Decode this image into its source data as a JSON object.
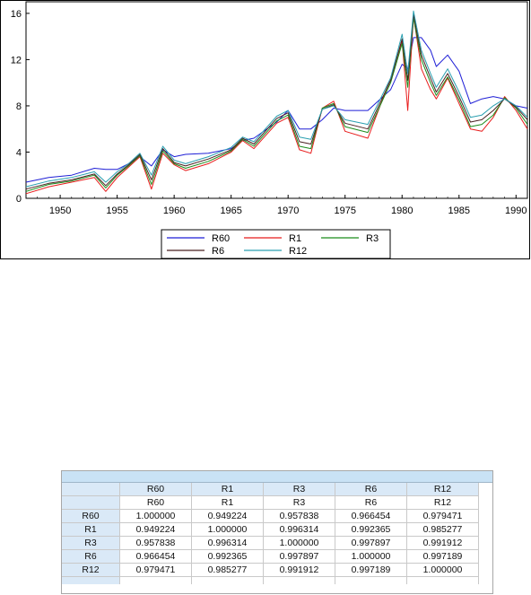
{
  "chart_data": {
    "type": "line",
    "xlabel": "",
    "ylabel": "",
    "xlim": [
      1947,
      1991
    ],
    "ylim": [
      0,
      17
    ],
    "x_ticks": [
      "1950",
      "1955",
      "1960",
      "1965",
      "1970",
      "1975",
      "1980",
      "1985",
      "1990"
    ],
    "y_ticks": [
      "0",
      "4",
      "8",
      "12",
      "16"
    ],
    "legend_position": "bottom-center",
    "x": [
      1947,
      1949,
      1951,
      1953,
      1954,
      1955,
      1956,
      1957,
      1958,
      1959,
      1960,
      1961,
      1963,
      1965,
      1966,
      1967,
      1969,
      1970,
      1971,
      1972,
      1973,
      1974,
      1975,
      1977,
      1979,
      1980,
      1980.5,
      1981,
      1981.7,
      1982.5,
      1983,
      1984,
      1985,
      1986,
      1987,
      1988,
      1989,
      1990,
      1991
    ],
    "series": [
      {
        "name": "R60",
        "color": "#1f1fd6",
        "values": [
          1.4,
          1.8,
          2.0,
          2.6,
          2.5,
          2.5,
          3.0,
          3.6,
          2.8,
          4.2,
          3.6,
          3.8,
          3.9,
          4.3,
          5.0,
          5.2,
          6.6,
          7.6,
          6.0,
          6.0,
          6.8,
          7.8,
          7.6,
          7.6,
          9.4,
          11.6,
          11.2,
          13.9,
          13.9,
          12.8,
          11.4,
          12.4,
          11.0,
          8.2,
          8.6,
          8.8,
          8.6,
          8.0,
          7.8
        ]
      },
      {
        "name": "R1",
        "color": "#e81c1c",
        "values": [
          0.4,
          1.0,
          1.4,
          1.8,
          0.6,
          1.8,
          2.7,
          3.6,
          0.8,
          3.9,
          2.9,
          2.4,
          3.0,
          4.0,
          5.0,
          4.3,
          6.5,
          7.0,
          4.2,
          3.9,
          7.8,
          8.4,
          5.8,
          5.2,
          10.4,
          13.6,
          7.6,
          15.8,
          11.2,
          9.4,
          8.6,
          10.4,
          8.2,
          6.0,
          5.8,
          7.0,
          8.8,
          7.6,
          6.0
        ]
      },
      {
        "name": "R3",
        "color": "#1a8c1a",
        "values": [
          0.6,
          1.2,
          1.5,
          2.0,
          0.9,
          2.0,
          2.8,
          3.7,
          1.2,
          4.1,
          3.0,
          2.6,
          3.2,
          4.1,
          5.1,
          4.5,
          6.7,
          7.2,
          4.5,
          4.3,
          7.8,
          8.2,
          6.2,
          5.7,
          10.0,
          13.4,
          9.6,
          15.6,
          12.0,
          10.0,
          8.9,
          10.5,
          8.5,
          6.2,
          6.4,
          7.2,
          8.7,
          7.8,
          6.4
        ]
      },
      {
        "name": "R6",
        "color": "#4a2020",
        "values": [
          0.8,
          1.3,
          1.6,
          2.1,
          1.1,
          2.1,
          2.9,
          3.8,
          1.6,
          4.3,
          3.1,
          2.8,
          3.4,
          4.2,
          5.2,
          4.7,
          6.9,
          7.4,
          4.9,
          4.7,
          7.7,
          8.1,
          6.5,
          6.0,
          10.2,
          13.8,
          10.2,
          15.9,
          12.4,
          10.4,
          9.2,
          10.8,
          8.8,
          6.6,
          6.8,
          7.6,
          8.6,
          7.9,
          6.8
        ]
      },
      {
        "name": "R12",
        "color": "#2a9fb0",
        "values": [
          1.0,
          1.5,
          1.8,
          2.3,
          1.4,
          2.3,
          3.0,
          3.9,
          2.0,
          4.5,
          3.3,
          3.0,
          3.6,
          4.4,
          5.3,
          4.9,
          7.1,
          7.6,
          5.3,
          5.1,
          7.7,
          8.0,
          6.8,
          6.4,
          10.4,
          14.2,
          10.8,
          16.2,
          12.8,
          10.8,
          9.6,
          11.2,
          9.2,
          7.0,
          7.2,
          8.0,
          8.6,
          8.0,
          7.0
        ]
      }
    ]
  },
  "table": {
    "columns": [
      "R60",
      "R1",
      "R3",
      "R6",
      "R12"
    ],
    "subheader": [
      "R60",
      "R1",
      "R3",
      "R6",
      "R12"
    ],
    "rows": [
      {
        "label": "R60",
        "values": [
          "1.000000",
          "0.949224",
          "0.957838",
          "0.966454",
          "0.979471"
        ]
      },
      {
        "label": "R1",
        "values": [
          "0.949224",
          "1.000000",
          "0.996314",
          "0.992365",
          "0.985277"
        ]
      },
      {
        "label": "R3",
        "values": [
          "0.957838",
          "0.996314",
          "1.000000",
          "0.997897",
          "0.991912"
        ]
      },
      {
        "label": "R6",
        "values": [
          "0.966454",
          "0.992365",
          "0.997897",
          "1.000000",
          "0.997189"
        ]
      },
      {
        "label": "R12",
        "values": [
          "0.979471",
          "0.985277",
          "0.991912",
          "0.997189",
          "1.000000"
        ]
      }
    ]
  }
}
